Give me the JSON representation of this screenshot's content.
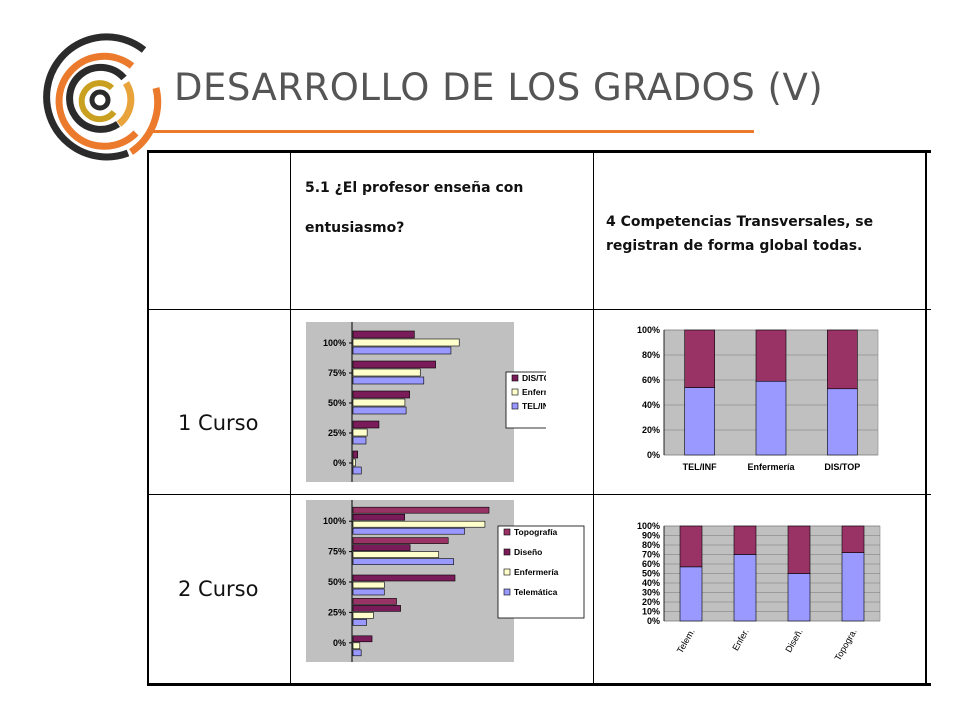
{
  "slide": {
    "title": "DESARROLLO DE LOS GRADOS (V)"
  },
  "table": {
    "header_col2": [
      "5.1 ¿El profesor enseña con",
      "entusiasmo?"
    ],
    "header_col3": [
      "4 Competencias Transversales, se",
      "registran de forma global todas."
    ],
    "row_labels": [
      "1 Curso",
      "2 Curso"
    ]
  },
  "colors": {
    "accent": "#ec7a2c",
    "dark_purple": "#7b1c5a",
    "cream": "#ffffcc",
    "periwinkle": "#9999ff",
    "rose": "#993366",
    "plot_bg": "#c0c0c0"
  },
  "chart_data": [
    {
      "type": "bar",
      "orientation": "horizontal",
      "categories": [
        "0%",
        "25%",
        "50%",
        "75%",
        "100%"
      ],
      "series": [
        {
          "name": "DIS/TOP",
          "values": [
            4,
            22,
            48,
            70,
            52
          ]
        },
        {
          "name": "Enfermería",
          "values": [
            2,
            12,
            44,
            57,
            90
          ]
        },
        {
          "name": "TEL/INF",
          "values": [
            7,
            11,
            45,
            60,
            83
          ]
        }
      ],
      "legend_position": "right"
    },
    {
      "type": "bar",
      "stacked": true,
      "categories": [
        "TEL/INF",
        "Enfermería",
        "DIS/TOP"
      ],
      "ylim": [
        0,
        100
      ],
      "yticks": [
        "0%",
        "20%",
        "40%",
        "60%",
        "80%",
        "100%"
      ],
      "series": [
        {
          "name": "",
          "values": [
            54,
            59,
            53
          ]
        },
        {
          "name": "",
          "values": [
            46,
            41,
            47
          ]
        }
      ],
      "grid": true
    },
    {
      "type": "bar",
      "orientation": "horizontal",
      "categories": [
        "0%",
        "25%",
        "50%",
        "75%",
        "100%"
      ],
      "series": [
        {
          "name": "Topografía",
          "values": [
            0,
            32,
            0,
            70,
            100
          ]
        },
        {
          "name": "Diseño",
          "values": [
            14,
            35,
            75,
            42,
            38
          ]
        },
        {
          "name": "Enfermería",
          "values": [
            5,
            15,
            23,
            63,
            97
          ]
        },
        {
          "name": "Telemática",
          "values": [
            6,
            10,
            23,
            74,
            82
          ]
        }
      ],
      "legend_position": "right"
    },
    {
      "type": "bar",
      "stacked": true,
      "categories": [
        "Telem.",
        "Enfer.",
        "Diseñ.",
        "Topogra."
      ],
      "ylim": [
        0,
        100
      ],
      "yticks": [
        "0%",
        "10%",
        "20%",
        "30%",
        "40%",
        "50%",
        "60%",
        "70%",
        "80%",
        "90%",
        "100%"
      ],
      "series": [
        {
          "name": "",
          "values": [
            57,
            70,
            50,
            72
          ]
        },
        {
          "name": "",
          "values": [
            43,
            30,
            50,
            28
          ]
        }
      ],
      "grid": true
    }
  ]
}
